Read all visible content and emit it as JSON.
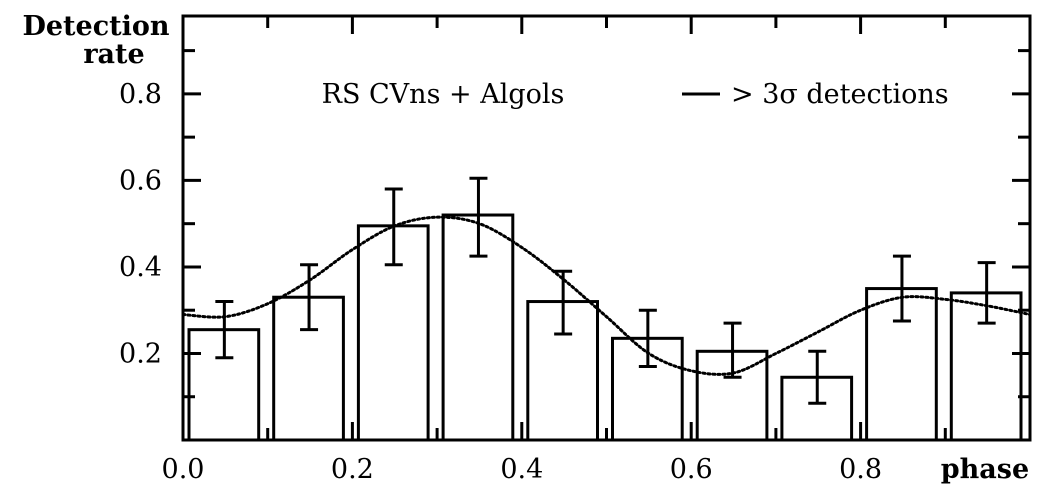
{
  "chart_data": {
    "type": "bar",
    "ylabel": [
      "Detection",
      "rate"
    ],
    "xlabel": "phase",
    "annotation": "RS CVns + Algols",
    "legend": {
      "label": "> 3σ detections",
      "placement": "top-right"
    },
    "xlim": [
      0.0,
      1.0
    ],
    "ylim": [
      0.0,
      0.98
    ],
    "x_ticks": [
      "0.0",
      "0.2",
      "0.4",
      "0.6",
      "0.8"
    ],
    "y_ticks": [
      "0.2",
      "0.4",
      "0.6",
      "0.8"
    ],
    "bins": [
      {
        "x0": 0.0,
        "x1": 0.1,
        "value": 0.255,
        "err_low": 0.19,
        "err_high": 0.32
      },
      {
        "x0": 0.1,
        "x1": 0.2,
        "value": 0.33,
        "err_low": 0.255,
        "err_high": 0.405
      },
      {
        "x0": 0.2,
        "x1": 0.3,
        "value": 0.495,
        "err_low": 0.405,
        "err_high": 0.58
      },
      {
        "x0": 0.3,
        "x1": 0.4,
        "value": 0.52,
        "err_low": 0.425,
        "err_high": 0.605
      },
      {
        "x0": 0.4,
        "x1": 0.5,
        "value": 0.32,
        "err_low": 0.245,
        "err_high": 0.39
      },
      {
        "x0": 0.5,
        "x1": 0.6,
        "value": 0.235,
        "err_low": 0.17,
        "err_high": 0.3
      },
      {
        "x0": 0.6,
        "x1": 0.7,
        "value": 0.205,
        "err_low": 0.145,
        "err_high": 0.27
      },
      {
        "x0": 0.7,
        "x1": 0.8,
        "value": 0.145,
        "err_low": 0.085,
        "err_high": 0.205
      },
      {
        "x0": 0.8,
        "x1": 0.9,
        "value": 0.35,
        "err_low": 0.275,
        "err_high": 0.425
      },
      {
        "x0": 0.9,
        "x1": 1.0,
        "value": 0.34,
        "err_low": 0.27,
        "err_high": 0.41
      }
    ],
    "fit_curve": {
      "style": "dotted",
      "x": [
        0.0,
        0.05,
        0.1,
        0.15,
        0.2,
        0.25,
        0.3,
        0.35,
        0.4,
        0.45,
        0.5,
        0.55,
        0.6,
        0.65,
        0.7,
        0.75,
        0.8,
        0.85,
        0.9,
        0.95,
        1.0
      ],
      "y": [
        0.29,
        0.285,
        0.315,
        0.37,
        0.44,
        0.495,
        0.515,
        0.5,
        0.445,
        0.37,
        0.285,
        0.2,
        0.16,
        0.155,
        0.2,
        0.25,
        0.3,
        0.33,
        0.325,
        0.31,
        0.29
      ]
    },
    "grid": false,
    "colors": {
      "bars": "#000000",
      "background": "#ffffff"
    }
  }
}
